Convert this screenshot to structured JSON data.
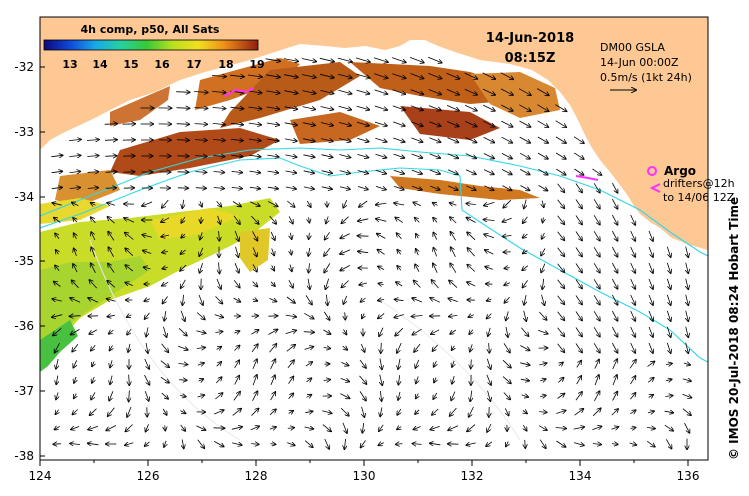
{
  "colorbar": {
    "title": "4h comp, p50, All Sats",
    "ticks": [
      "13",
      "14",
      "15",
      "16",
      "17",
      "18",
      "19"
    ]
  },
  "timestamp": {
    "date": "14-Jun-2018",
    "time": "08:15Z"
  },
  "current_legend": {
    "line1": "DM00 GSLA",
    "line2": "14-Jun 00:00Z",
    "line3": "0.5m/s (1kt 24h)"
  },
  "argo_legend": {
    "argo_label": "Argo",
    "drifters_line1": "drifters@12h",
    "drifters_line2": "to 14/06 12Z"
  },
  "credit": "© IMOS 20-Jul-2018 08:24 Hobart Time",
  "axes": {
    "x_ticks": [
      "124",
      "126",
      "128",
      "130",
      "132",
      "134",
      "136"
    ],
    "y_ticks": [
      "-32",
      "-33",
      "-34",
      "-35",
      "-36",
      "-37",
      "-38"
    ]
  },
  "colors": {
    "land": "#fdc893",
    "ocean": "#ffffff",
    "warm_sst": "#c8641e",
    "cool_sst": "#c8dc28",
    "contour": "#30d8e8",
    "argo": "#ff30ff"
  }
}
